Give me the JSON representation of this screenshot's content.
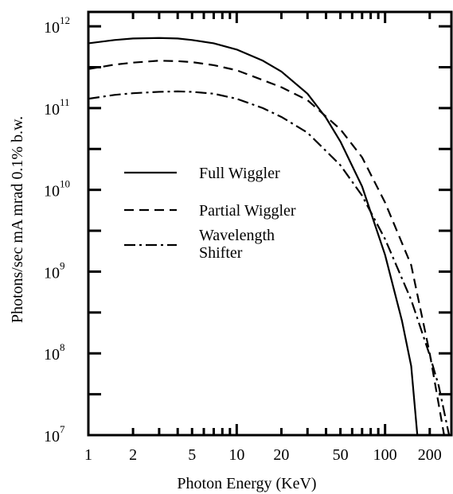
{
  "chart_data": {
    "type": "line",
    "xlabel": "Photon Energy (KeV)",
    "ylabel": "Photons/sec mA mrad 0.1% b.w.",
    "xscale": "log",
    "yscale": "log",
    "xlim": [
      1,
      280
    ],
    "ylim": [
      10000000,
      1500000000000
    ],
    "x_tick_labels": [
      {
        "v": 1,
        "t": "1"
      },
      {
        "v": 2,
        "t": "2"
      },
      {
        "v": 5,
        "t": "5"
      },
      {
        "v": 10,
        "t": "10"
      },
      {
        "v": 20,
        "t": "20"
      },
      {
        "v": 50,
        "t": "50"
      },
      {
        "v": 100,
        "t": "100"
      },
      {
        "v": 200,
        "t": "200"
      }
    ],
    "y_tick_labels": [
      {
        "v": 10000000,
        "base": "10",
        "exp": "7"
      },
      {
        "v": 100000000,
        "base": "10",
        "exp": "8"
      },
      {
        "v": 1000000000,
        "base": "10",
        "exp": "9"
      },
      {
        "v": 10000000000,
        "base": "10",
        "exp": "10"
      },
      {
        "v": 100000000000,
        "base": "10",
        "exp": "11"
      },
      {
        "v": 1000000000000,
        "base": "10",
        "exp": "12"
      }
    ],
    "legend": {
      "position": "center-left"
    },
    "series": [
      {
        "name": "Full Wiggler",
        "dash": "solid",
        "x": [
          1,
          1.5,
          2,
          3,
          4,
          5,
          7,
          10,
          15,
          20,
          30,
          40,
          50,
          70,
          100,
          130,
          150,
          165
        ],
        "y": [
          620000000000,
          680000000000,
          710000000000,
          720000000000,
          710000000000,
          680000000000,
          620000000000,
          520000000000,
          380000000000,
          280000000000,
          150000000000,
          76000000000,
          39000000000,
          11000000000,
          1600000000,
          250000000,
          70000000,
          10000000
        ]
      },
      {
        "name": "Partial Wiggler",
        "dash": "dashed",
        "x": [
          1,
          1.5,
          2,
          3,
          4,
          5,
          7,
          10,
          15,
          20,
          30,
          50,
          70,
          100,
          150,
          200,
          250
        ],
        "y": [
          300000000000,
          340000000000,
          360000000000,
          380000000000,
          375000000000,
          365000000000,
          335000000000,
          290000000000,
          220000000000,
          180000000000,
          125000000000,
          55000000000,
          25000000000,
          7000000000,
          1200000000,
          100000000,
          10000000
        ]
      },
      {
        "name": "Wavelength\nShifter",
        "dash": "dashdot",
        "x": [
          1,
          1.5,
          2,
          3,
          4,
          5,
          7,
          10,
          15,
          20,
          30,
          50,
          70,
          100,
          150,
          200,
          230,
          270
        ],
        "y": [
          130000000000,
          145000000000,
          152000000000,
          158000000000,
          160000000000,
          158000000000,
          150000000000,
          130000000000,
          100000000000,
          78000000000,
          50000000000,
          20000000000,
          8500000000,
          2500000000,
          450000000,
          95000000,
          40000000,
          10000000
        ]
      }
    ]
  }
}
